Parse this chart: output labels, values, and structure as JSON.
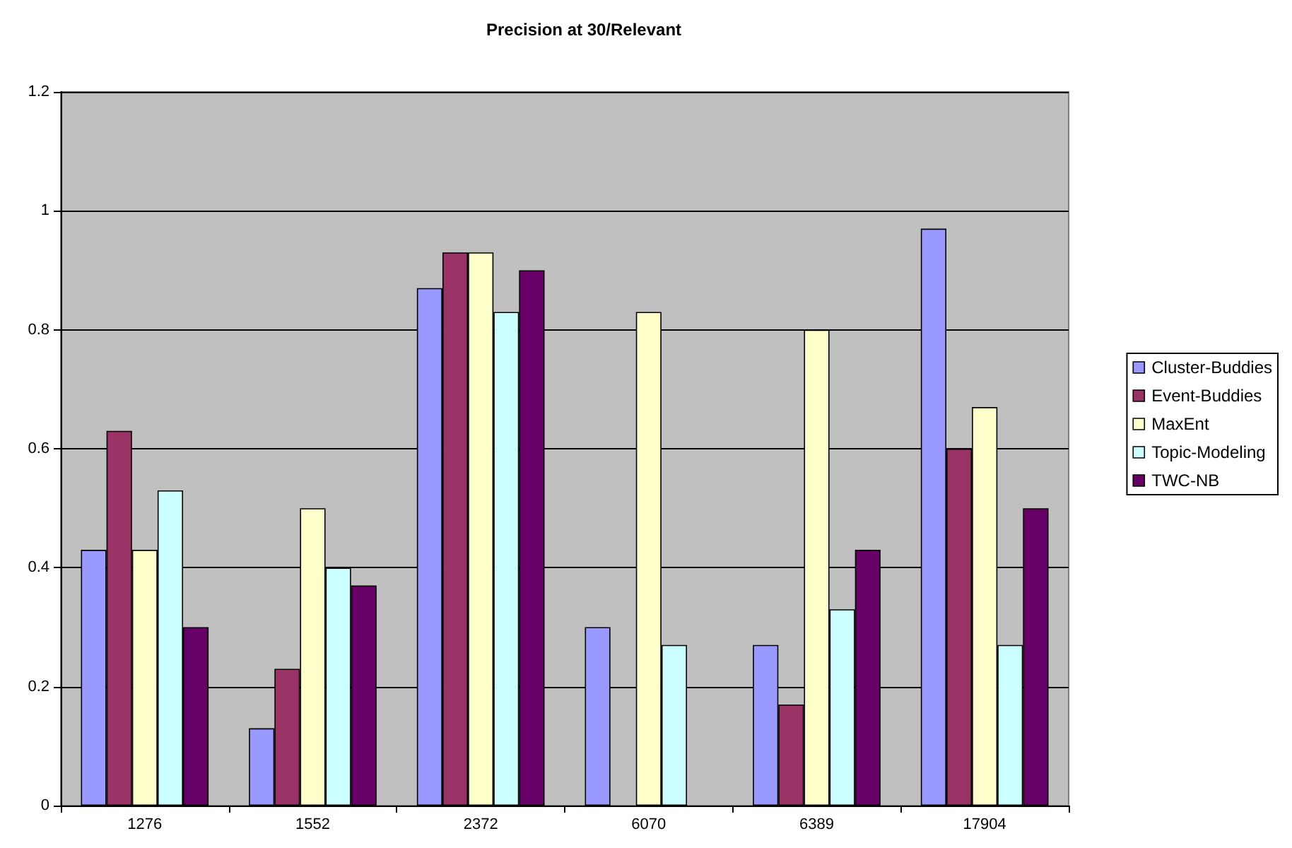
{
  "chart_data": {
    "type": "bar",
    "title": "Precision at 30/Relevant",
    "categories": [
      "1276",
      "1552",
      "2372",
      "6070",
      "6389",
      "17904"
    ],
    "series": [
      {
        "name": "Cluster-Buddies",
        "color": "#9999ff",
        "values": [
          0.43,
          0.13,
          0.87,
          0.3,
          0.27,
          0.97
        ]
      },
      {
        "name": "Event-Buddies",
        "color": "#993366",
        "values": [
          0.63,
          0.23,
          0.93,
          null,
          0.17,
          0.6
        ]
      },
      {
        "name": "MaxEnt",
        "color": "#ffffcc",
        "values": [
          0.43,
          0.5,
          0.93,
          0.83,
          0.8,
          0.67
        ]
      },
      {
        "name": "Topic-Modeling",
        "color": "#ccffff",
        "values": [
          0.53,
          0.4,
          0.83,
          0.27,
          0.33,
          0.27
        ]
      },
      {
        "name": "TWC-NB",
        "color": "#660066",
        "values": [
          0.3,
          0.37,
          0.9,
          null,
          0.43,
          0.5
        ]
      }
    ],
    "ylim": [
      0,
      1.2
    ],
    "yticks": [
      0,
      0.2,
      0.4,
      0.6,
      0.8,
      1,
      1.2
    ],
    "grid": "y",
    "legend": "right"
  }
}
